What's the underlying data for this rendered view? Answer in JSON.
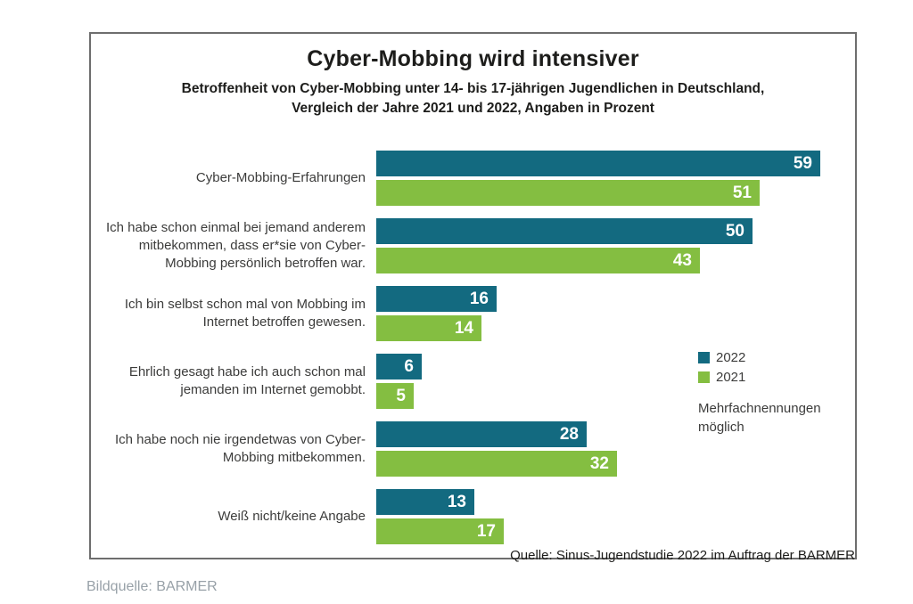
{
  "figure": {
    "title": "Cyber-Mobbing wird intensiver",
    "subtitle_lines": [
      "Betroffenheit von Cyber-Mobbing unter 14- bis 17-jährigen Jugendlichen in Deutschland,",
      "Vergleich der Jahre 2021 und 2022, Angaben in Prozent"
    ],
    "note": "Mehrfachnennungen möglich",
    "source": "Quelle: Sinus-Jugendstudie 2022 im Auftrag der BARMER",
    "caption": "Bildquelle: BARMER"
  },
  "chart_data": {
    "type": "bar",
    "orientation": "horizontal",
    "title": "Cyber-Mobbing wird intensiver",
    "subtitle": "Betroffenheit von Cyber-Mobbing unter 14- bis 17-jährigen Jugendlichen in Deutschland, Vergleich der Jahre 2021 und 2022, Angaben in Prozent",
    "unit": "Prozent",
    "xlim": [
      0,
      62
    ],
    "grid": false,
    "legend_position": "right",
    "value_labels": "inside-end, white",
    "categories": [
      "Cyber-Mobbing-Erfahrungen",
      "Ich habe schon einmal bei jemand anderem mitbekommen, dass er*sie von Cyber-Mobbing persönlich betroffen war.",
      "Ich bin selbst schon mal von Mobbing im Internet betroffen gewesen.",
      "Ehrlich gesagt habe ich auch schon mal jemanden im Internet gemobbt.",
      "Ich habe noch nie irgendetwas von Cyber-Mobbing mitbekommen.",
      "Weiß nicht/keine Angabe"
    ],
    "series": [
      {
        "name": "2022",
        "color": "#136a80",
        "values": [
          59,
          50,
          16,
          6,
          28,
          13
        ]
      },
      {
        "name": "2021",
        "color": "#84be41",
        "values": [
          51,
          43,
          14,
          5,
          32,
          17
        ]
      }
    ],
    "annotations": [
      "Mehrfachnennungen möglich"
    ],
    "source": "Quelle: Sinus-Jugendstudie 2022 im Auftrag der BARMER"
  },
  "colors": {
    "series_2022": "#136a80",
    "series_2021": "#84be41",
    "box_border": "#6e6e6e",
    "text_dark": "#1d1d1b",
    "text_label": "#3c3c3b",
    "caption_gray": "#98a1a8"
  }
}
